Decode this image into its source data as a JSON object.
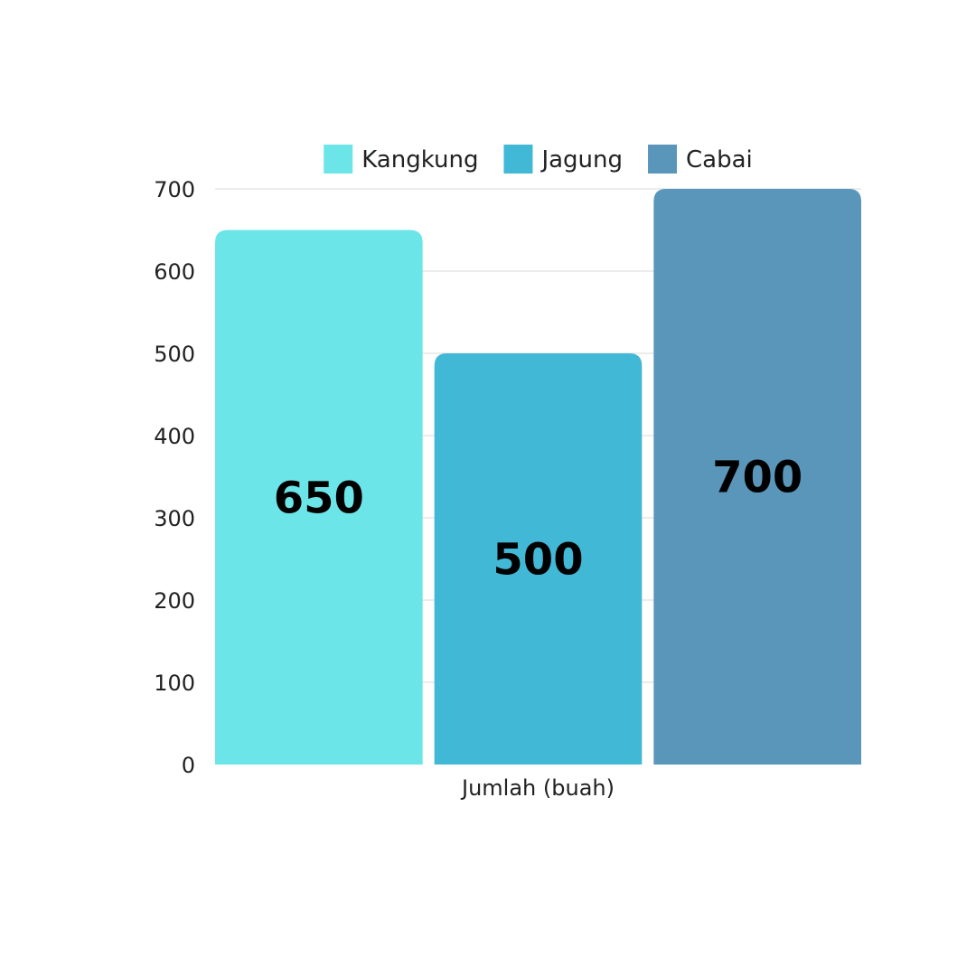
{
  "chart_data": {
    "type": "bar",
    "categories": [
      "Jumlah (buah)"
    ],
    "series": [
      {
        "name": "Kangkung",
        "values": [
          650
        ],
        "color": "#6CE5E8"
      },
      {
        "name": "Jagung",
        "values": [
          500
        ],
        "color": "#41B8D5"
      },
      {
        "name": "Cabai",
        "values": [
          700
        ],
        "color": "#5A96BA"
      }
    ],
    "title": "",
    "xlabel": "",
    "ylabel": "",
    "ylim": [
      0,
      700
    ],
    "yticks": [
      0,
      100,
      200,
      300,
      400,
      500,
      600,
      700
    ],
    "grid": true,
    "legend_position": "top"
  }
}
